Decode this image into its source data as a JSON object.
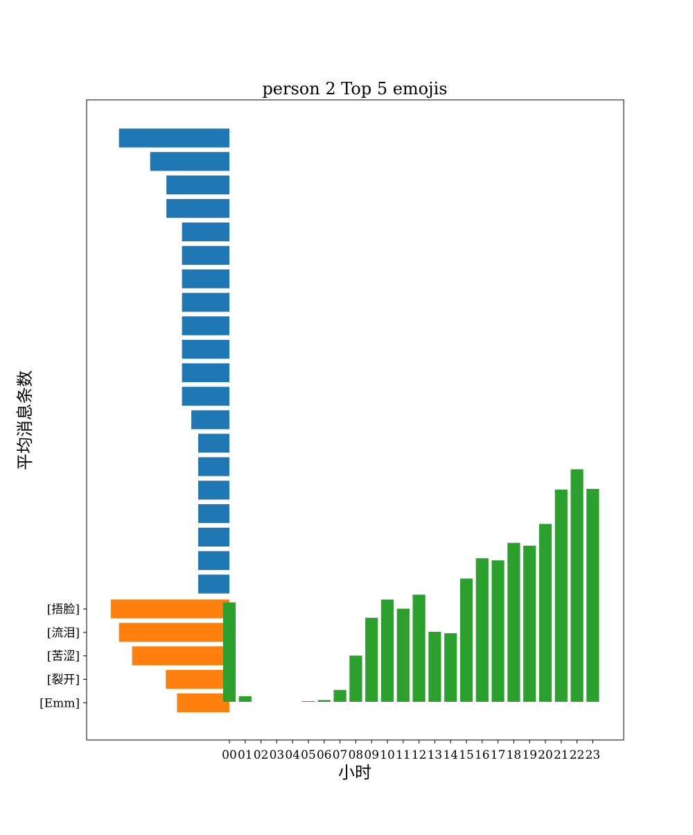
{
  "chart_data": {
    "type": "bar",
    "title": "person 2 Top 5 emojis",
    "xlabel": "小时",
    "ylabel": "平均消息条数",
    "grid": false,
    "legend": "none",
    "colors": {
      "blue": "#1f77b4",
      "orange": "#ff7f0e",
      "green": "#2ca02c"
    },
    "hours": [
      "00",
      "01",
      "02",
      "03",
      "04",
      "05",
      "06",
      "07",
      "08",
      "09",
      "10",
      "11",
      "12",
      "13",
      "14",
      "15",
      "16",
      "17",
      "18",
      "19",
      "20",
      "21",
      "22",
      "23"
    ],
    "hourly_messages": [
      14.2,
      0.8,
      0,
      0,
      0,
      0.1,
      0.25,
      1.7,
      6.6,
      12.0,
      14.6,
      13.3,
      15.3,
      10.0,
      9.8,
      17.6,
      20.5,
      20.2,
      22.7,
      22.3,
      25.4,
      30.3,
      33.2,
      30.4
    ],
    "emoji_labels": [
      "[捂脸]",
      "[流泪]",
      "[苦涩]",
      "[裂开]",
      "[Emm]"
    ],
    "emoji_counts": [
      19,
      17.7,
      15.6,
      10.2,
      8.4
    ],
    "blue_series": [
      17.7,
      12.7,
      10.1,
      10.1,
      7.6,
      7.6,
      7.6,
      7.6,
      7.6,
      7.6,
      7.6,
      7.6,
      6.1,
      5.0,
      5.0,
      5.0,
      5.0,
      5.0,
      5.0,
      5.0
    ]
  }
}
